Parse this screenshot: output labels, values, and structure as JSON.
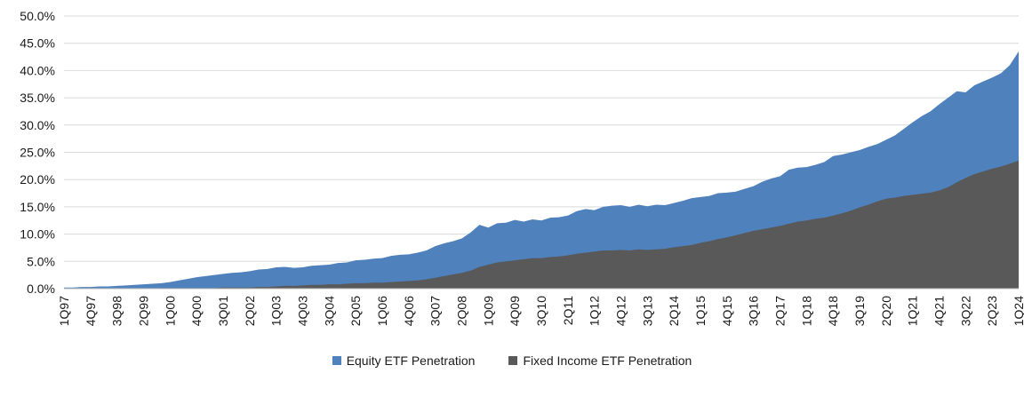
{
  "chart_data": {
    "type": "area",
    "title": "",
    "xlabel": "",
    "ylabel": "",
    "ylim": [
      0,
      50
    ],
    "grid": true,
    "legend_position": "bottom",
    "grid_color": "#D9D9D9",
    "axis_color": "#BFBFBF",
    "x_tick_step": 3,
    "y_ticks": [
      {
        "value": 0,
        "label": "0.0%"
      },
      {
        "value": 5,
        "label": "5.0%"
      },
      {
        "value": 10,
        "label": "10.0%"
      },
      {
        "value": 15,
        "label": "15.0%"
      },
      {
        "value": 20,
        "label": "20.0%"
      },
      {
        "value": 25,
        "label": "25.0%"
      },
      {
        "value": 30,
        "label": "30.0%"
      },
      {
        "value": 35,
        "label": "35.0%"
      },
      {
        "value": 40,
        "label": "40.0%"
      },
      {
        "value": 45,
        "label": "45.0%"
      },
      {
        "value": 50,
        "label": "50.0%"
      }
    ],
    "categories": [
      "1Q97",
      "2Q97",
      "3Q97",
      "4Q97",
      "1Q98",
      "2Q98",
      "3Q98",
      "4Q98",
      "1Q99",
      "2Q99",
      "3Q99",
      "4Q99",
      "1Q00",
      "2Q00",
      "3Q00",
      "4Q00",
      "1Q01",
      "2Q01",
      "3Q01",
      "4Q01",
      "1Q02",
      "2Q02",
      "3Q02",
      "4Q02",
      "1Q03",
      "2Q03",
      "3Q03",
      "4Q03",
      "1Q04",
      "2Q04",
      "3Q04",
      "4Q04",
      "1Q05",
      "2Q05",
      "3Q05",
      "4Q05",
      "1Q06",
      "2Q06",
      "3Q06",
      "4Q06",
      "1Q07",
      "2Q07",
      "3Q07",
      "4Q07",
      "1Q08",
      "2Q08",
      "3Q08",
      "4Q08",
      "1Q09",
      "2Q09",
      "3Q09",
      "4Q09",
      "1Q10",
      "2Q10",
      "3Q10",
      "4Q10",
      "1Q11",
      "2Q11",
      "3Q11",
      "4Q11",
      "1Q12",
      "2Q12",
      "3Q12",
      "4Q12",
      "1Q13",
      "2Q13",
      "3Q13",
      "4Q13",
      "1Q14",
      "2Q14",
      "3Q14",
      "4Q14",
      "1Q15",
      "2Q15",
      "3Q15",
      "4Q15",
      "1Q16",
      "2Q16",
      "3Q16",
      "4Q16",
      "1Q17",
      "2Q17",
      "3Q17",
      "4Q17",
      "1Q18",
      "2Q18",
      "3Q18",
      "4Q18",
      "1Q19",
      "2Q19",
      "3Q19",
      "4Q19",
      "1Q20",
      "2Q20",
      "3Q20",
      "4Q20",
      "1Q21",
      "2Q21",
      "3Q21",
      "4Q21",
      "1Q22",
      "2Q22",
      "3Q22",
      "4Q22",
      "1Q23",
      "2Q23",
      "3Q23",
      "4Q23",
      "1Q24"
    ],
    "series": [
      {
        "id": "equity",
        "name": "Equity ETF Penetration",
        "color": "#4F81BD",
        "values": [
          0.2,
          0.2,
          0.3,
          0.3,
          0.4,
          0.4,
          0.5,
          0.6,
          0.7,
          0.8,
          0.9,
          1.0,
          1.2,
          1.5,
          1.8,
          2.1,
          2.3,
          2.5,
          2.7,
          2.9,
          3.0,
          3.2,
          3.5,
          3.6,
          3.9,
          4.0,
          3.8,
          3.9,
          4.2,
          4.3,
          4.4,
          4.7,
          4.8,
          5.2,
          5.3,
          5.5,
          5.6,
          6.0,
          6.2,
          6.3,
          6.6,
          7.0,
          7.8,
          8.3,
          8.7,
          9.2,
          10.3,
          11.7,
          11.2,
          12.0,
          12.1,
          12.6,
          12.3,
          12.7,
          12.5,
          13.0,
          13.1,
          13.4,
          14.2,
          14.6,
          14.4,
          15.0,
          15.2,
          15.3,
          15.0,
          15.4,
          15.1,
          15.4,
          15.3,
          15.7,
          16.1,
          16.6,
          16.8,
          17.0,
          17.5,
          17.6,
          17.8,
          18.3,
          18.8,
          19.6,
          20.2,
          20.6,
          21.8,
          22.2,
          22.3,
          22.7,
          23.2,
          24.3,
          24.6,
          25.0,
          25.4,
          26.0,
          26.5,
          27.3,
          28.1,
          29.3,
          30.5,
          31.6,
          32.5,
          33.8,
          35.0,
          36.2,
          36.0,
          37.3,
          38.0,
          38.7,
          39.5,
          41.0,
          43.5
        ]
      },
      {
        "id": "fixed-income",
        "name": "Fixed Income ETF Penetration",
        "color": "#595959",
        "values": [
          0.0,
          0.0,
          0.0,
          0.0,
          0.0,
          0.0,
          0.0,
          0.0,
          0.0,
          0.0,
          0.0,
          0.1,
          0.1,
          0.1,
          0.1,
          0.1,
          0.1,
          0.1,
          0.2,
          0.2,
          0.2,
          0.2,
          0.3,
          0.3,
          0.4,
          0.5,
          0.5,
          0.6,
          0.7,
          0.7,
          0.8,
          0.8,
          0.9,
          1.0,
          1.0,
          1.1,
          1.1,
          1.2,
          1.3,
          1.4,
          1.5,
          1.7,
          2.0,
          2.3,
          2.6,
          2.9,
          3.3,
          4.0,
          4.4,
          4.8,
          5.0,
          5.2,
          5.4,
          5.6,
          5.6,
          5.8,
          5.9,
          6.1,
          6.4,
          6.6,
          6.8,
          7.0,
          7.0,
          7.1,
          7.0,
          7.2,
          7.1,
          7.2,
          7.3,
          7.6,
          7.8,
          8.0,
          8.4,
          8.7,
          9.1,
          9.4,
          9.8,
          10.2,
          10.6,
          10.9,
          11.2,
          11.5,
          11.9,
          12.3,
          12.5,
          12.8,
          13.0,
          13.4,
          13.8,
          14.3,
          14.9,
          15.4,
          16.0,
          16.5,
          16.7,
          17.0,
          17.2,
          17.4,
          17.6,
          18.0,
          18.6,
          19.5,
          20.3,
          21.0,
          21.5,
          22.0,
          22.4,
          22.9,
          23.5
        ]
      }
    ]
  }
}
